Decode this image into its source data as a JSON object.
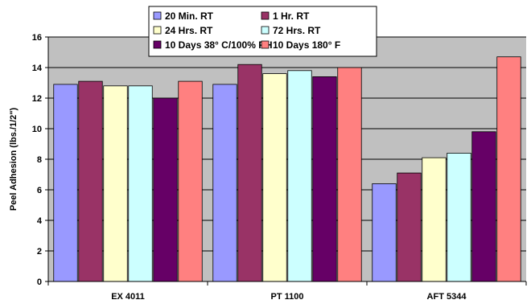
{
  "chart_data": {
    "type": "bar",
    "title": "",
    "xlabel": "",
    "ylabel": "Peel Adhesion (lbs./1/2\")",
    "ylim": [
      0,
      16
    ],
    "yticks": [
      0,
      2,
      4,
      6,
      8,
      10,
      12,
      14,
      16
    ],
    "grid": true,
    "legend_position": "top",
    "categories": [
      "EX 4011",
      "PT 1100",
      "AFT 5344"
    ],
    "series": [
      {
        "name": "20 Min. RT",
        "color": "#9999FF",
        "values": [
          12.9,
          12.9,
          6.4
        ]
      },
      {
        "name": "1 Hr. RT",
        "color": "#993366",
        "values": [
          13.1,
          14.2,
          7.1
        ]
      },
      {
        "name": "24 Hrs. RT",
        "color": "#FFFFCC",
        "values": [
          12.8,
          13.6,
          8.1
        ]
      },
      {
        "name": "72 Hrs. RT",
        "color": "#CCFFFF",
        "values": [
          12.8,
          13.8,
          8.4
        ]
      },
      {
        "name": "10 Days 38° C/100% RH",
        "color": "#660066",
        "values": [
          12.0,
          13.4,
          9.8
        ]
      },
      {
        "name": "10 Days 180° F",
        "color": "#FF8080",
        "values": [
          13.1,
          14.0,
          14.7
        ]
      }
    ],
    "plot_background": "#C0C0C0"
  }
}
